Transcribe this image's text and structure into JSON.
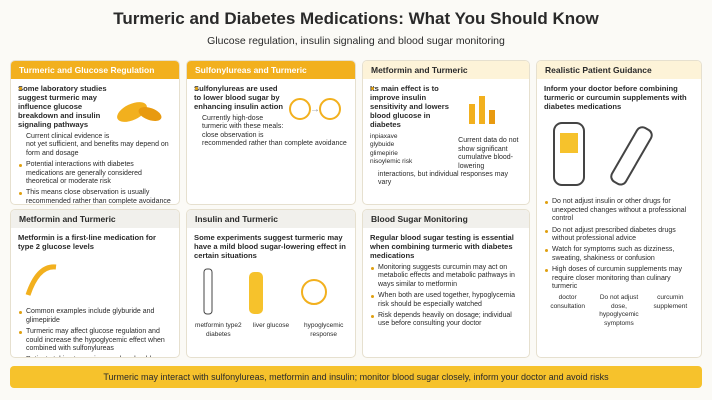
{
  "header": {
    "title": "Turmeric and Diabetes Medications: What You Should Know",
    "subtitle": "Glucose regulation, insulin signaling and blood sugar monitoring"
  },
  "cards": [
    {
      "title": "Turmeric and Glucose Regulation",
      "lead": "Some laboratory studies suggest turmeric may influence glucose breakdown and insulin signaling pathways",
      "bullets": [
        "Current clinical evidence is not yet sufficient, and benefits may depend on form and dosage",
        "Potential interactions with diabetes medications are generally considered theoretical or moderate risk",
        "This means close observation is usually recommended rather than complete avoidance"
      ]
    },
    {
      "title": "Sulfonylureas and Turmeric",
      "lead": "Sulfonylureas are used to lower blood sugar by enhancing insulin action",
      "bullets": [
        "Currently high-dose turmeric with these meals: close observation is recommended rather than complete avoidance"
      ]
    },
    {
      "title": "Metformin and Turmeric",
      "lead": "Its main effect is to improve insulin sensitivity and lowers blood glucose in diabetes",
      "labels": [
        "inpiaxave",
        "glybuide",
        "glimepirie",
        "nisoylemic risk"
      ],
      "bullets": [
        "Current data do not show significant cumulative blood-lowering interactions, but individual responses may vary"
      ]
    },
    {
      "title": "Realistic Patient Guidance",
      "lead": "Inform your doctor before combining turmeric or curcumin supplements with diabetes medications",
      "bullets": [
        "Do not adjust insulin or other drugs for unexpected changes without a professional control",
        "Do not adjust prescribed diabetes drugs without professional advice",
        "Watch for symptoms such as dizziness, sweating, shakiness or confusion",
        "High doses of curcumin supplements may require closer monitoring than culinary turmeric"
      ],
      "labels": [
        "doctor consultation",
        "Do not adjust dose, hypoglycemic symptoms",
        "curcumin supplement"
      ]
    },
    {
      "title": "Metformin and Turmeric",
      "lead": "Metformin is a first-line medication for type 2 glucose levels",
      "bullets": [
        "Common examples include glyburide and glimepiride",
        "Turmeric may affect glucose regulation and could increase the hypoglycemic effect when combined with sulfonylureas",
        "Patients taking turmeric capsules should monitor blood sugar regularly and consult a doctor before starting"
      ]
    },
    {
      "title": "Insulin and Turmeric",
      "lead": "Some experiments suggest turmeric may have a mild blood sugar-lowering effect in certain situations",
      "labels": [
        "metformin type2 diabetes",
        "liver glucose",
        "hypoglycemic response"
      ]
    },
    {
      "title": "Blood Sugar Monitoring",
      "lead": "Regular blood sugar testing is essential when combining turmeric with diabetes medications",
      "bullets": [
        "Monitoring suggests curcumin may act on metabolic effects and metabolic pathways in ways similar to metformin",
        "When both are used together, hypoglycemia risk should be especially watched",
        "Risk depends heavily on dosage; individual use before consulting your doctor"
      ]
    }
  ],
  "footer": "Turmeric may interact with sulfonylureas, metformin and insulin; monitor blood sugar closely, inform your doctor and avoid risks"
}
